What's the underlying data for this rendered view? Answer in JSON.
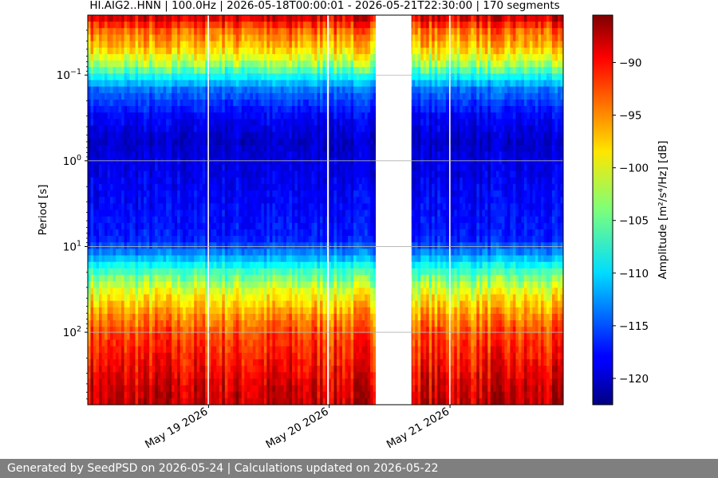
{
  "chart_data": {
    "type": "heatmap",
    "title": "HI.AIG2..HNN | 100.0Hz | 2026-05-18T00:00:01 - 2026-05-21T22:30:00 | 170 segments",
    "xlabel": "",
    "ylabel": "Period [s]",
    "colorbar_label": "Amplitude [m²/s⁴/Hz] [dB]",
    "y_scale": "log",
    "y_inverted": true,
    "ylim": [
      0.02,
      700
    ],
    "y_ticks": [
      {
        "value": 0.1,
        "base": "10",
        "exp": "−1"
      },
      {
        "value": 1,
        "base": "10",
        "exp": "0"
      },
      {
        "value": 10,
        "base": "10",
        "exp": "1"
      },
      {
        "value": 100,
        "base": "10",
        "exp": "2"
      }
    ],
    "xlim": [
      "2026-05-18T00:00:01",
      "2026-05-21T22:30:00"
    ],
    "x_ticks": [
      {
        "value": "2026-05-19T00:00:00",
        "label": "May 19 2026"
      },
      {
        "value": "2026-05-20T00:00:00",
        "label": "May 20 2026"
      },
      {
        "value": "2026-05-21T00:00:00",
        "label": "May 21 2026"
      }
    ],
    "data_gaps": [
      [
        "2026-05-18T23:50:00",
        "2026-05-19T00:05:00"
      ],
      [
        "2026-05-19T23:35:00",
        "2026-05-19T23:55:00"
      ],
      [
        "2026-05-20T09:15:00",
        "2026-05-20T16:20:00"
      ],
      [
        "2026-05-20T23:50:00",
        "2026-05-21T00:05:00"
      ]
    ],
    "grid": "horizontal",
    "colorbar": {
      "vmin": -122.5,
      "vmax": -85.5,
      "ticks": [
        -90,
        -95,
        -100,
        -105,
        -110,
        -115,
        -120
      ],
      "tick_labels": [
        "−90",
        "−95",
        "−100",
        "−105",
        "−110",
        "−115",
        "−120"
      ]
    },
    "approx_profile": {
      "periods": [
        0.02,
        0.03,
        0.05,
        0.07,
        0.1,
        0.15,
        0.3,
        0.6,
        1,
        3,
        8,
        12,
        20,
        35,
        60,
        100,
        200,
        400,
        700
      ],
      "amplitude_db": [
        -88,
        -94,
        -98,
        -102,
        -108,
        -114,
        -118,
        -120,
        -119,
        -118,
        -117,
        -113,
        -106,
        -100,
        -96,
        -93,
        -91,
        -89,
        -88
      ]
    },
    "colormap": "jet"
  },
  "footer": {
    "text": "Generated by SeedPSD on 2026-05-24 | Calculations updated on 2026-05-22"
  }
}
